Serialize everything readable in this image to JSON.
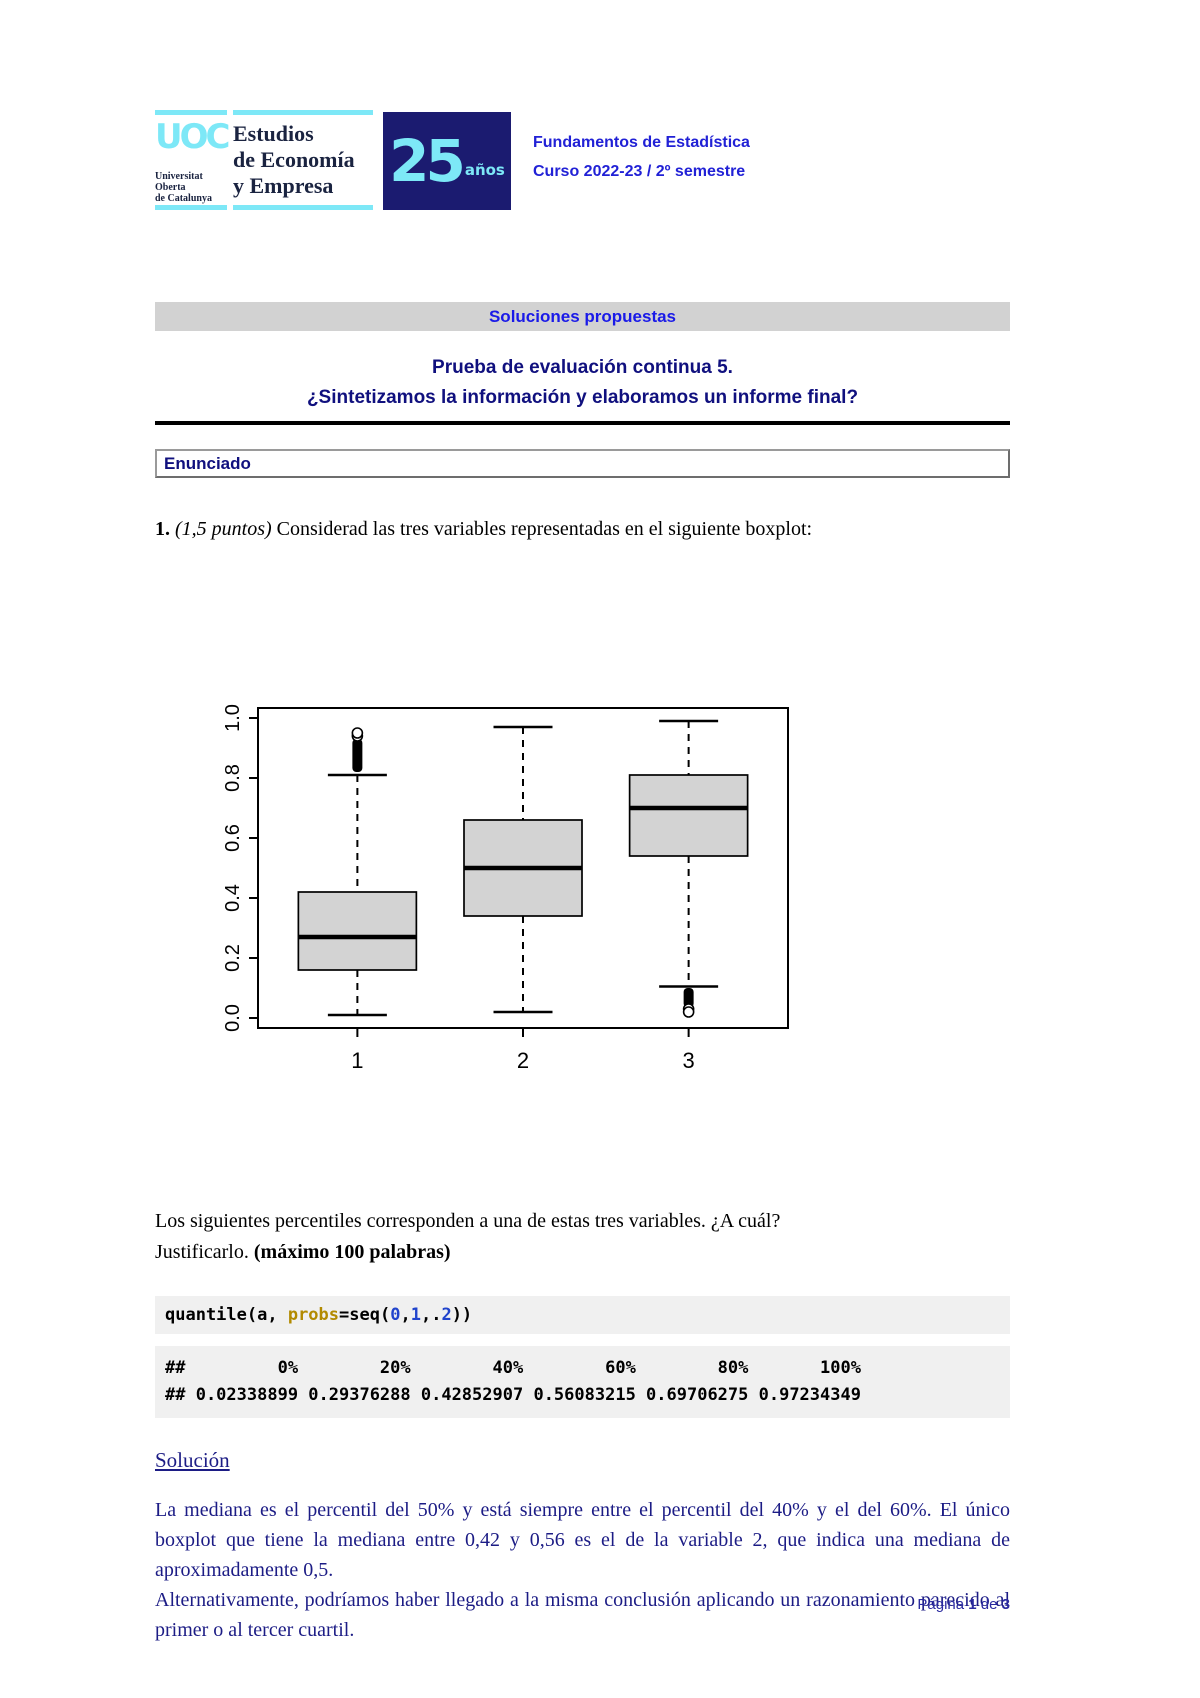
{
  "header": {
    "logo": {
      "uoc_acronym": "UOC",
      "uni_line1": "Universitat",
      "uni_line2": "Oberta",
      "uni_line3": "de Catalunya",
      "school_line1": "Estudios",
      "school_line2": "de Economía",
      "school_line3": "y Empresa",
      "anniversary_digits": "25",
      "anniversary_label": "años"
    },
    "course": "Fundamentos de Estadística",
    "term": "Curso 2022-23 / 2º semestre"
  },
  "banner_label": "Soluciones propuestas",
  "title_line1": "Prueba de evaluación continua 5.",
  "title_line2": "¿Sintetizamos la información y elaboramos un informe final?",
  "section_label": "Enunciado",
  "question": {
    "number": "1.",
    "points": "(1,5 puntos)",
    "text": "Considerad las tres variables representadas en el siguiente boxplot:"
  },
  "prompt": {
    "line1": "Los siguientes percentiles corresponden a una de estas tres variables. ¿A cuál?",
    "line2_regular": "Justificarlo. ",
    "line2_bold": "(máximo 100 palabras)"
  },
  "code_block": {
    "tokens": [
      {
        "text": "quantile(a, ",
        "color": "#000000"
      },
      {
        "text": "probs",
        "color": "#b28a00"
      },
      {
        "text": "=seq(",
        "color": "#000000"
      },
      {
        "text": "0",
        "color": "#2144cc"
      },
      {
        "text": ",",
        "color": "#000000"
      },
      {
        "text": "1",
        "color": "#2144cc"
      },
      {
        "text": ",.",
        "color": "#000000"
      },
      {
        "text": "2",
        "color": "#2144cc"
      },
      {
        "text": "))",
        "color": "#000000"
      }
    ],
    "output_line1": "##         0%        20%        40%        60%        80%       100%",
    "output_line2": "## 0.02338899 0.29376288 0.42852907 0.56083215 0.69706275 0.97234349"
  },
  "solution": {
    "heading": "Solución",
    "paragraph1": "La mediana es el percentil del 50% y está siempre entre el percentil del 40% y el del 60%. El único boxplot que tiene la mediana entre 0,42 y 0,56 es el de la variable 2, que indica una mediana de aproximadamente 0,5.",
    "paragraph2": "Alternativamente, podríamos haber llegado a la misma conclusión aplicando un razonamiento parecido al primer o al tercer cuartil."
  },
  "footer": {
    "prefix": "Página ",
    "page": "1",
    "middle": " de ",
    "total": "3"
  },
  "colors": {
    "accent_cyan": "#7de8f7",
    "logo_navy": "#1b1b70",
    "header_blue": "#2121d6",
    "title_navy": "#10107e",
    "solution_navy": "#1c1c85",
    "banner_bg": "#d2d2d2",
    "code_bg": "#f0f0f0",
    "box_fill": "#d3d3d3"
  },
  "chart_data": {
    "type": "boxplot",
    "title": "",
    "xlabel": "",
    "ylabel": "",
    "categories": [
      "1",
      "2",
      "3"
    ],
    "ylim": [
      0,
      1
    ],
    "yticks": [
      0,
      0.2,
      0.4,
      0.6,
      0.8,
      1.0
    ],
    "grid": false,
    "legend": null,
    "box_fill": "#d3d3d3",
    "series": [
      {
        "name": "1",
        "whisker_low": 0.01,
        "q1": 0.16,
        "median": 0.27,
        "q3": 0.42,
        "whisker_high": 0.81,
        "outliers_dense": [
          0.82,
          0.93
        ],
        "outlier_points": [
          0.94,
          0.95
        ]
      },
      {
        "name": "2",
        "whisker_low": 0.02,
        "q1": 0.34,
        "median": 0.5,
        "q3": 0.66,
        "whisker_high": 0.97,
        "outliers_dense": null,
        "outlier_points": []
      },
      {
        "name": "3",
        "whisker_low": 0.105,
        "q1": 0.54,
        "median": 0.7,
        "q3": 0.81,
        "whisker_high": 0.99,
        "outliers_dense": [
          0.035,
          0.1
        ],
        "outlier_points": [
          0.03,
          0.02
        ]
      }
    ]
  }
}
